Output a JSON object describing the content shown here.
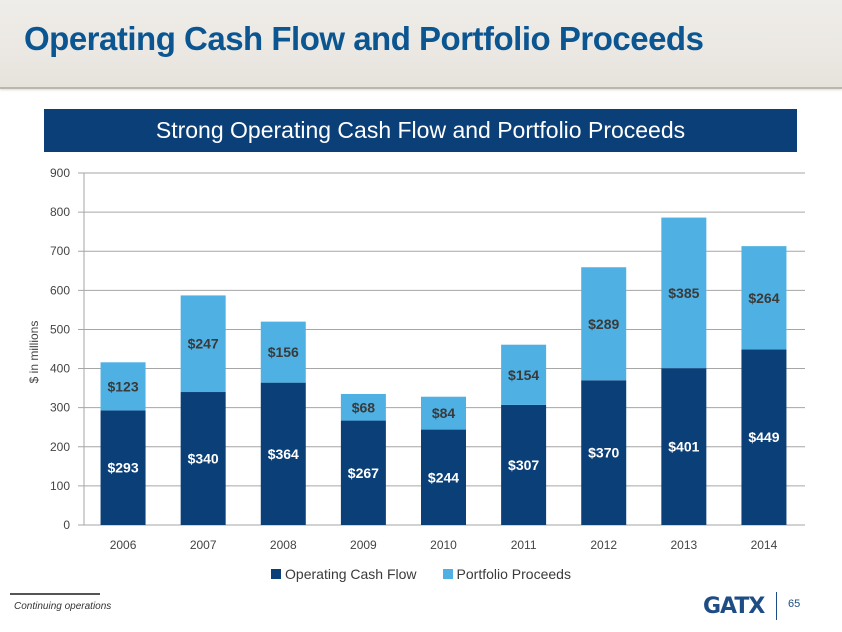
{
  "header": {
    "title": "Operating Cash Flow and Portfolio Proceeds"
  },
  "banner": {
    "text": "Strong Operating Cash Flow and Portfolio Proceeds"
  },
  "colors": {
    "operating_cash_flow": "#0b3f78",
    "portfolio_proceeds": "#4fb1e3",
    "title": "#0b5591",
    "grid": "#a6a6a6"
  },
  "chart_data": {
    "type": "bar",
    "stacked": true,
    "title": "Strong Operating Cash Flow and Portfolio Proceeds",
    "xlabel": "",
    "ylabel": "$ in millions",
    "ylim": [
      0,
      900
    ],
    "yticks": [
      0,
      100,
      200,
      300,
      400,
      500,
      600,
      700,
      800,
      900
    ],
    "grid": true,
    "legend_position": "bottom-center",
    "categories": [
      "2006",
      "2007",
      "2008",
      "2009",
      "2010",
      "2011",
      "2012",
      "2013",
      "2014"
    ],
    "series": [
      {
        "name": "Operating Cash Flow",
        "values": [
          293,
          340,
          364,
          267,
          244,
          307,
          370,
          401,
          449
        ],
        "labels": [
          "$293",
          "$340",
          "$364",
          "$267",
          "$244",
          "$307",
          "$370",
          "$401",
          "$449"
        ]
      },
      {
        "name": "Portfolio Proceeds",
        "values": [
          123,
          247,
          156,
          68,
          84,
          154,
          289,
          385,
          264
        ],
        "labels": [
          "$123",
          "$247",
          "$156",
          "$68",
          "$84",
          "$154",
          "$289",
          "$385",
          "$264"
        ]
      }
    ]
  },
  "legend": {
    "items": [
      "Operating Cash Flow",
      "Portfolio Proceeds"
    ]
  },
  "footer": {
    "footnote": "Continuing operations",
    "logo": "GATX",
    "page_number": "65"
  }
}
